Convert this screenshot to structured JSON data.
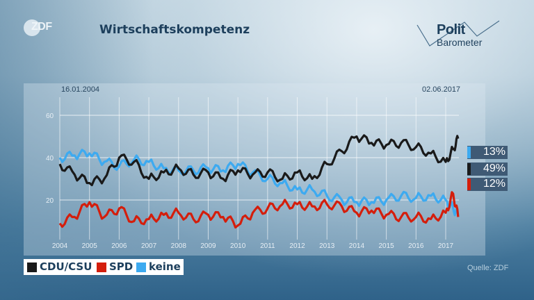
{
  "header": {
    "channel_logo": "ZDF",
    "title": "Wirtschaftskompetenz",
    "brand_logo": {
      "line1": "Polit",
      "line2": "Barometer"
    }
  },
  "chart_panel": {
    "date_start": "16.01.2004",
    "date_end": "02.06.2017"
  },
  "badges": [
    {
      "label": "keine",
      "value": "13%",
      "color": "#3daaf0"
    },
    {
      "label": "CDU/CSU",
      "value": "49%",
      "color": "#1a1a1a"
    },
    {
      "label": "SPD",
      "value": "12%",
      "color": "#d41e0c"
    }
  ],
  "legend": [
    {
      "label": "CDU/CSU",
      "color": "#1a1a1a"
    },
    {
      "label": "SPD",
      "color": "#d41e0c"
    },
    {
      "label": "keine",
      "color": "#3daaf0"
    }
  ],
  "source": "Quelle: ZDF",
  "chart_data": {
    "type": "line",
    "title": "Wirtschaftskompetenz",
    "xlabel": "",
    "ylabel": "",
    "ylim": [
      0,
      70
    ],
    "yticks": [
      20,
      40,
      60
    ],
    "xticks": [
      "2004",
      "2005",
      "2006",
      "2007",
      "2008",
      "2009",
      "2010",
      "2011",
      "2012",
      "2013",
      "2014",
      "2015",
      "2016",
      "2017"
    ],
    "grid": true,
    "legend_position": "bottom-left",
    "date_range": [
      "16.01.2004",
      "02.06.2017"
    ],
    "x": [
      2004.0,
      2004.5,
      2005.0,
      2005.5,
      2006.0,
      2006.5,
      2007.0,
      2007.5,
      2008.0,
      2008.5,
      2009.0,
      2009.5,
      2010.0,
      2010.5,
      2011.0,
      2011.5,
      2012.0,
      2012.5,
      2013.0,
      2013.5,
      2014.0,
      2014.5,
      2015.0,
      2015.5,
      2016.0,
      2016.5,
      2017.0,
      2017.25,
      2017.42
    ],
    "series": [
      {
        "name": "CDU/CSU",
        "color": "#1a1a1a",
        "values": [
          37,
          32,
          28,
          30,
          40,
          38,
          30,
          33,
          35,
          32,
          33,
          30,
          34,
          32,
          33,
          30,
          33,
          30,
          37,
          43,
          50,
          47,
          46,
          47,
          45,
          42,
          38,
          44,
          49
        ]
      },
      {
        "name": "SPD",
        "color": "#d41e0c",
        "values": [
          9,
          12,
          19,
          12,
          16,
          10,
          11,
          13,
          14,
          11,
          13,
          12,
          8,
          14,
          16,
          18,
          18,
          17,
          18,
          17,
          14,
          15,
          13,
          12,
          12,
          11,
          14,
          23,
          12
        ]
      },
      {
        "name": "keine",
        "color": "#3daaf0",
        "values": [
          40,
          41,
          42,
          38,
          36,
          39,
          38,
          35,
          34,
          34,
          35,
          34,
          37,
          33,
          30,
          28,
          25,
          25,
          22,
          20,
          19,
          19,
          20,
          22,
          21,
          22,
          20,
          16,
          13
        ]
      }
    ],
    "end_labels": {
      "keine": "13%",
      "CDU/CSU": "49%",
      "SPD": "12%"
    }
  }
}
